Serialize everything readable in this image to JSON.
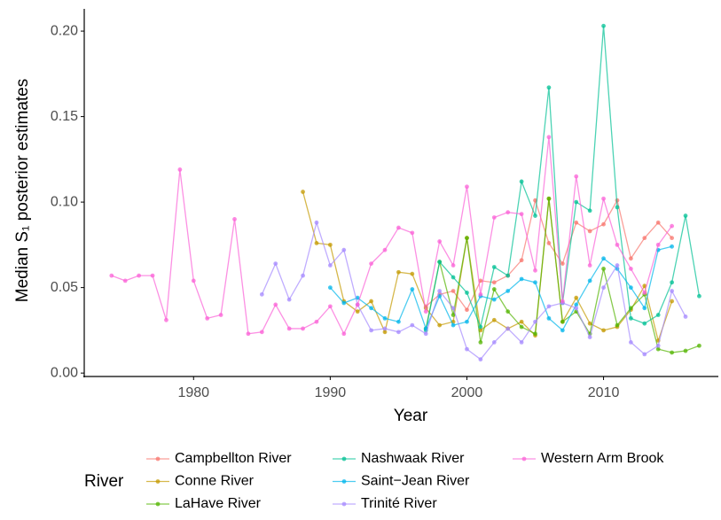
{
  "chart_data": {
    "type": "line",
    "xlabel": "Year",
    "ylabel": "Median S₁ posterior estimates",
    "legend_title": "River",
    "x": [
      1974,
      1975,
      1976,
      1977,
      1978,
      1979,
      1980,
      1981,
      1982,
      1983,
      1984,
      1985,
      1986,
      1987,
      1988,
      1989,
      1990,
      1991,
      1992,
      1993,
      1994,
      1995,
      1996,
      1997,
      1998,
      1999,
      2000,
      2001,
      2002,
      2003,
      2004,
      2005,
      2006,
      2007,
      2008,
      2009,
      2010,
      2011,
      2012,
      2013,
      2014,
      2015,
      2016,
      2017
    ],
    "xlim": [
      1972,
      2018.4
    ],
    "xticks": [
      1980,
      1990,
      2000,
      2010
    ],
    "ylim": [
      -0.002,
      0.213
    ],
    "yticks": [
      {
        "value": 0,
        "label": "0.00"
      },
      {
        "value": 0.05,
        "label": "0.05"
      },
      {
        "value": 0.1,
        "label": "0.10"
      },
      {
        "value": 0.15,
        "label": "0.15"
      },
      {
        "value": 0.2,
        "label": "0.20"
      }
    ],
    "legend": "bottom",
    "series": [
      {
        "name": "Campbellton River",
        "color": "#F8766D",
        "values": [
          null,
          null,
          null,
          null,
          null,
          null,
          null,
          null,
          null,
          null,
          null,
          null,
          null,
          null,
          null,
          null,
          null,
          null,
          null,
          null,
          null,
          null,
          null,
          0.039,
          0.046,
          0.048,
          0.037,
          0.054,
          0.053,
          0.057,
          0.066,
          0.101,
          0.076,
          0.064,
          0.088,
          0.083,
          0.087,
          0.101,
          0.067,
          0.079,
          0.088,
          0.079,
          null,
          null
        ]
      },
      {
        "name": "Conne River",
        "color": "#C49A00",
        "values": [
          null,
          null,
          null,
          null,
          null,
          null,
          null,
          null,
          null,
          null,
          null,
          null,
          null,
          null,
          0.106,
          0.076,
          0.075,
          0.042,
          0.036,
          0.042,
          0.024,
          0.059,
          0.058,
          0.038,
          0.028,
          0.03,
          0.079,
          0.025,
          0.031,
          0.026,
          0.03,
          0.022,
          0.102,
          0.03,
          0.044,
          0.029,
          0.025,
          0.027,
          0.037,
          0.051,
          0.019,
          0.042,
          null,
          null
        ]
      },
      {
        "name": "LaHave River",
        "color": "#53B400",
        "values": [
          null,
          null,
          null,
          null,
          null,
          null,
          null,
          null,
          null,
          null,
          null,
          null,
          null,
          null,
          null,
          null,
          null,
          null,
          null,
          null,
          null,
          null,
          null,
          0.026,
          0.065,
          0.034,
          0.079,
          0.018,
          0.049,
          0.036,
          0.027,
          0.023,
          0.102,
          0.03,
          0.036,
          0.023,
          0.061,
          0.028,
          0.038,
          0.046,
          0.014,
          0.012,
          0.013,
          0.016
        ]
      },
      {
        "name": "Nashwaak River",
        "color": "#00C094",
        "values": [
          null,
          null,
          null,
          null,
          null,
          null,
          null,
          null,
          null,
          null,
          null,
          null,
          null,
          null,
          null,
          null,
          null,
          null,
          null,
          null,
          null,
          null,
          null,
          0.025,
          0.065,
          0.056,
          0.047,
          0.027,
          0.062,
          0.057,
          0.112,
          0.092,
          0.167,
          0.041,
          0.1,
          0.095,
          0.203,
          0.097,
          0.032,
          0.029,
          0.034,
          0.053,
          0.092,
          0.045
        ]
      },
      {
        "name": "Saint−Jean River",
        "color": "#00B6EB",
        "values": [
          null,
          null,
          null,
          null,
          null,
          null,
          null,
          null,
          null,
          null,
          null,
          null,
          null,
          null,
          null,
          null,
          0.05,
          0.041,
          0.044,
          0.038,
          0.032,
          0.03,
          0.049,
          0.026,
          0.045,
          0.028,
          0.03,
          0.045,
          0.043,
          0.048,
          0.055,
          0.053,
          0.032,
          0.025,
          0.04,
          0.054,
          0.067,
          0.061,
          0.05,
          0.038,
          0.072,
          0.074,
          null,
          null
        ]
      },
      {
        "name": "Trinité River",
        "color": "#A58AFF",
        "values": [
          null,
          null,
          null,
          null,
          null,
          null,
          null,
          null,
          null,
          null,
          null,
          0.046,
          0.064,
          0.043,
          0.057,
          0.088,
          0.063,
          0.072,
          0.04,
          0.025,
          0.026,
          0.024,
          0.028,
          0.023,
          0.048,
          0.038,
          0.014,
          0.008,
          0.018,
          0.026,
          0.018,
          0.03,
          0.039,
          0.041,
          0.038,
          0.021,
          0.05,
          0.063,
          0.018,
          0.011,
          0.016,
          0.048,
          0.033,
          null
        ]
      },
      {
        "name": "Western Arm Brook",
        "color": "#FB61D7",
        "values": [
          0.057,
          0.054,
          0.057,
          0.057,
          0.031,
          0.119,
          0.054,
          0.032,
          0.034,
          0.09,
          0.023,
          0.024,
          0.04,
          0.026,
          0.026,
          0.03,
          0.039,
          0.023,
          0.04,
          0.064,
          0.072,
          0.085,
          0.082,
          0.036,
          0.077,
          0.063,
          0.109,
          0.046,
          0.091,
          0.094,
          0.093,
          0.06,
          0.138,
          0.042,
          0.115,
          0.063,
          0.102,
          0.075,
          0.061,
          0.047,
          0.075,
          0.086,
          null,
          null
        ]
      }
    ]
  }
}
